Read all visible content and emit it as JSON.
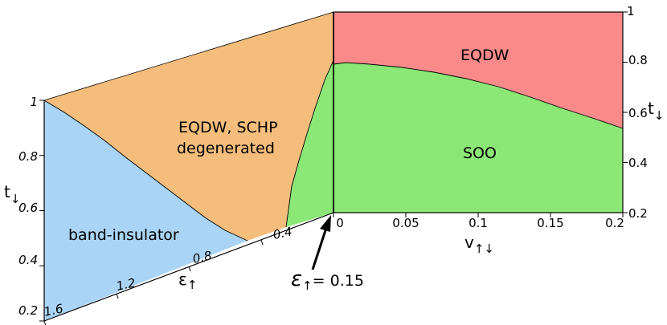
{
  "colors": {
    "band_insulator": "#a9d4f5",
    "eqdw_schp": "#f5bd7c",
    "soo": "#8ce876",
    "eqdw": "#fa8a8a"
  },
  "left_panel": {
    "regions": {
      "band_insulator": "band-insulator",
      "eqdw_schp_line1": "EQDW, SCHP",
      "eqdw_schp_line2": "degenerated"
    },
    "y_label_main": "t",
    "y_label_sub": "↓",
    "y_ticks": [
      "1",
      "0.8",
      "0.6",
      "0.4",
      "0.2"
    ],
    "x_label_main": "ε",
    "x_label_sub": "↑",
    "x_ticks": [
      "1.6",
      "1.2",
      "0.8",
      "0.4"
    ]
  },
  "right_panel": {
    "regions": {
      "eqdw": "EQDW",
      "soo": "SOO"
    },
    "y_label_main": "t",
    "y_label_sub": "↓",
    "y_ticks": [
      "1",
      "0.8",
      "0.6",
      "0.4",
      "0.2"
    ],
    "x_label_main": "v",
    "x_label_sub": "↑↓",
    "x_ticks": [
      "0",
      "0.05",
      "0.1",
      "0.15",
      "0.2"
    ]
  },
  "annotation": {
    "symbol": "ε",
    "sub": "↑",
    "text": "= 0.15"
  }
}
